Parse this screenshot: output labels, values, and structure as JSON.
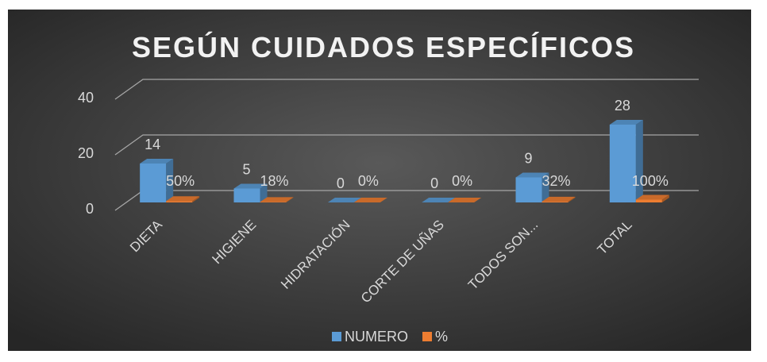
{
  "chart_data": {
    "type": "bar3d",
    "title": "SEGÚN CUIDADOS ESPECÍFICOS",
    "categories": [
      "DIETA",
      "HIGIENE",
      "HIDRATACIÓN",
      "CORTE DE UÑAS",
      "TODOS SON...",
      "TOTAL"
    ],
    "series": [
      {
        "name": "NUMERO",
        "color": "#5b9bd5",
        "values": [
          14,
          5,
          0,
          0,
          9,
          28
        ]
      },
      {
        "name": "%",
        "color": "#ed7d31",
        "values": [
          0.5,
          0.18,
          0,
          0,
          0.32,
          1
        ],
        "value_labels": [
          "50%",
          "18%",
          "0%",
          "0%",
          "32%",
          "100%"
        ]
      }
    ],
    "ylim": [
      0,
      40
    ],
    "yticks": [
      0,
      20,
      40
    ],
    "grid": true,
    "legend": "bottom"
  }
}
